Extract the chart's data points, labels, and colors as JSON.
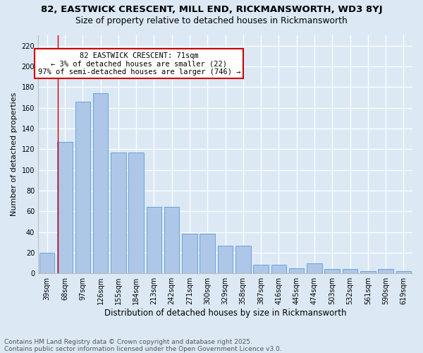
{
  "title1": "82, EASTWICK CRESCENT, MILL END, RICKMANSWORTH, WD3 8YJ",
  "title2": "Size of property relative to detached houses in Rickmansworth",
  "xlabel": "Distribution of detached houses by size in Rickmansworth",
  "ylabel": "Number of detached properties",
  "categories": [
    "39sqm",
    "68sqm",
    "97sqm",
    "126sqm",
    "155sqm",
    "184sqm",
    "213sqm",
    "242sqm",
    "271sqm",
    "300sqm",
    "329sqm",
    "358sqm",
    "387sqm",
    "416sqm",
    "445sqm",
    "474sqm",
    "503sqm",
    "532sqm",
    "561sqm",
    "590sqm",
    "619sqm"
  ],
  "values": [
    20,
    127,
    166,
    174,
    117,
    117,
    64,
    64,
    38,
    38,
    27,
    27,
    8,
    8,
    5,
    10,
    4,
    4,
    2,
    4,
    2
  ],
  "bar_color": "#aec6e8",
  "bar_edge_color": "#5b9bd5",
  "background_color": "#dce9f5",
  "grid_color": "#ffffff",
  "annotation_text_line1": "82 EASTWICK CRESCENT: 71sqm",
  "annotation_text_line2": "← 3% of detached houses are smaller (22)",
  "annotation_text_line3": "97% of semi-detached houses are larger (746) →",
  "annotation_box_facecolor": "#ffffff",
  "annotation_box_edgecolor": "#cc0000",
  "red_line_x": 0.62,
  "ylim": [
    0,
    230
  ],
  "yticks": [
    0,
    20,
    40,
    60,
    80,
    100,
    120,
    140,
    160,
    180,
    200,
    220
  ],
  "footer1": "Contains HM Land Registry data © Crown copyright and database right 2025.",
  "footer2": "Contains public sector information licensed under the Open Government Licence v3.0.",
  "title1_fontsize": 9.5,
  "title2_fontsize": 8.8,
  "annotation_fontsize": 7.5,
  "footer_fontsize": 6.5,
  "ylabel_fontsize": 8,
  "xlabel_fontsize": 8.5,
  "tick_fontsize": 7
}
